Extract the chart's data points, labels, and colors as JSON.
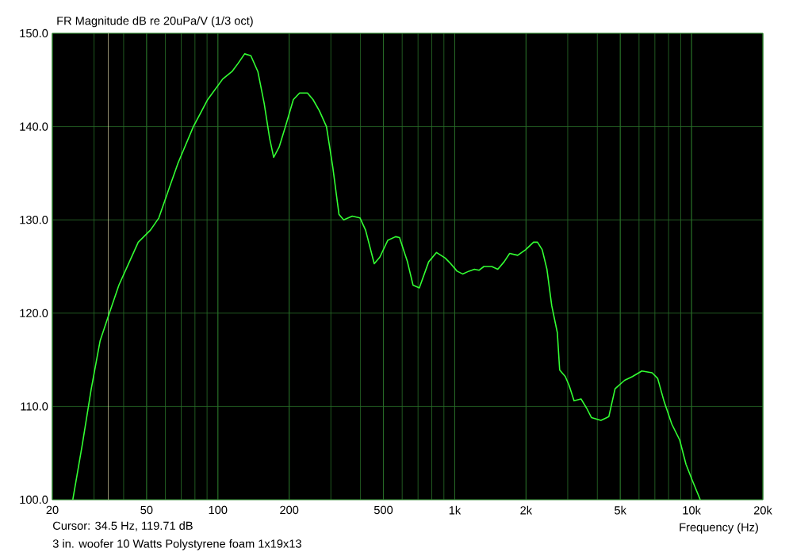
{
  "chart_data": {
    "type": "line",
    "title": "FR Magnitude dB re 20uPa/V (1/3 oct)",
    "xlabel": "Frequency (Hz)",
    "annotations": [
      "Cursor: 34.5 Hz, 119.71 dB",
      "3 in. woofer 10 Watts Polystyrene foam 1x19x13"
    ],
    "log": "x",
    "grid": true,
    "marker": "none",
    "line_style": "solid",
    "xlim": [
      20,
      20000
    ],
    "ylim": [
      100,
      150
    ],
    "xticks": [
      20,
      50,
      100,
      200,
      500,
      {
        "value": 1000,
        "label": "1k"
      },
      {
        "value": 2000,
        "label": "2k"
      },
      {
        "value": 5000,
        "label": "5k"
      },
      {
        "value": 10000,
        "label": "10k"
      },
      {
        "value": 20000,
        "label": "20k"
      }
    ],
    "yticks": [
      {
        "value": 100,
        "label": "100.0"
      },
      {
        "value": 110,
        "label": "110.0"
      },
      {
        "value": 120,
        "label": "120.0"
      },
      {
        "value": 130,
        "label": "130.0"
      },
      {
        "value": 140,
        "label": "140.0"
      },
      {
        "value": 150,
        "label": "150.0"
      }
    ],
    "ref_lines": [
      {
        "axis": "x",
        "value": 34.5,
        "color": "#e8e0b0"
      }
    ],
    "series": [
      {
        "color": "#33ff33",
        "x": [
          24.4,
          26.8,
          29.2,
          31.8,
          34.5,
          38.2,
          42.3,
          46.1,
          51.9,
          56.3,
          61.9,
          67.9,
          78.8,
          90.6,
          104.8,
          114.7,
          121.9,
          129.7,
          137.8,
          147.5,
          156.8,
          165.5,
          172,
          181.4,
          192.9,
          208.3,
          221.3,
          238.9,
          252.1,
          268.2,
          287.4,
          305.4,
          324.5,
          339.8,
          369.3,
          398.3,
          420.3,
          457.3,
          482.7,
          521.3,
          562.7,
          584.7,
          631.6,
          666.8,
          708.8,
          776.4,
          838,
          911.9,
          962.2,
          1023,
          1080,
          1148,
          1211,
          1268,
          1328,
          1433,
          1520,
          1616,
          1706,
          1845,
          1992,
          2151,
          2236,
          2341,
          2451,
          2568,
          2712,
          2774,
          2930,
          3046,
          3190,
          3415,
          3608,
          3781,
          4142,
          4473,
          4754,
          5215,
          5630,
          6165,
          6817,
          7195,
          7643,
          8253,
          8910,
          9470,
          10060,
          10880
        ],
        "values": [
          100,
          106,
          111.9,
          117,
          119.7,
          123,
          125.5,
          127.6,
          128.9,
          130.2,
          133.2,
          136.1,
          140,
          142.9,
          145.1,
          145.9,
          146.8,
          147.8,
          147.6,
          145.9,
          142.5,
          138.7,
          136.7,
          137.8,
          140,
          142.9,
          143.6,
          143.6,
          142.9,
          141.7,
          140,
          135.7,
          130.6,
          130,
          130.4,
          130.2,
          128.9,
          125.3,
          126,
          127.8,
          128.2,
          128.1,
          125.5,
          123,
          122.7,
          125.5,
          126.5,
          125.9,
          125.3,
          124.5,
          124.2,
          124.5,
          124.7,
          124.6,
          125,
          125,
          124.7,
          125.5,
          126.4,
          126.2,
          126.8,
          127.6,
          127.6,
          126.8,
          124.7,
          120.8,
          117.9,
          113.9,
          113.2,
          112.2,
          110.6,
          110.8,
          109.8,
          108.8,
          108.5,
          108.9,
          111.9,
          112.8,
          113.2,
          113.8,
          113.6,
          113,
          110.6,
          108.1,
          106.4,
          103.8,
          102.1,
          100
        ]
      }
    ]
  }
}
